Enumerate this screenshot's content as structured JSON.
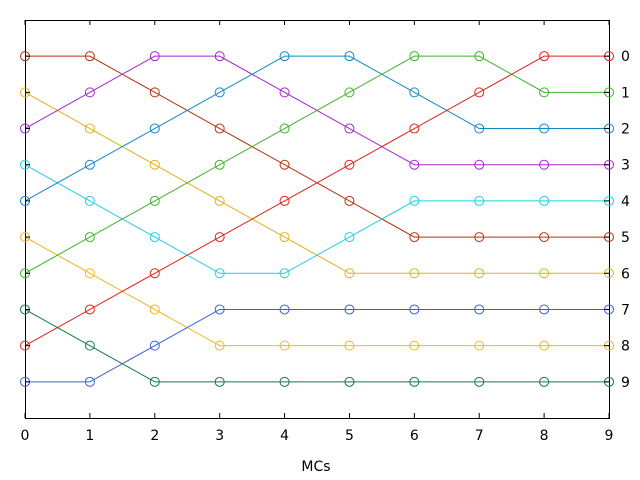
{
  "chart_data": {
    "type": "line",
    "title": "",
    "xlabel": "MCs",
    "ylabel": "",
    "x": [
      0,
      1,
      2,
      3,
      4,
      5,
      6,
      7,
      8,
      9
    ],
    "xticks": [
      "0",
      "1",
      "2",
      "3",
      "4",
      "5",
      "6",
      "7",
      "8",
      "9"
    ],
    "right_yticks": [
      "0",
      "1",
      "2",
      "3",
      "4",
      "5",
      "6",
      "7",
      "8",
      "9"
    ],
    "xlim": [
      0,
      9
    ],
    "ylim": [
      -1,
      10
    ],
    "y_inverted": true,
    "y_axis_side": "right",
    "grid": false,
    "marker": "open-circle",
    "series": [
      {
        "color": "#b5330f",
        "values": [
          0,
          0,
          1,
          2,
          3,
          4,
          5,
          5,
          5,
          5
        ]
      },
      {
        "color": "#e0b21a",
        "values": [
          1,
          2,
          3,
          4,
          5,
          6,
          6,
          6,
          6,
          6
        ]
      },
      {
        "color": "#a526d4",
        "values": [
          2,
          1,
          0,
          0,
          1,
          2,
          3,
          3,
          3,
          3
        ]
      },
      {
        "color": "#22d0e0",
        "values": [
          3,
          4,
          5,
          6,
          6,
          5,
          4,
          4,
          4,
          4
        ]
      },
      {
        "color": "#1386c9",
        "values": [
          4,
          3,
          2,
          1,
          0,
          0,
          1,
          2,
          2,
          2
        ]
      },
      {
        "color": "#f5b420",
        "values": [
          5,
          6,
          7,
          8,
          8,
          8,
          8,
          8,
          8,
          8
        ]
      },
      {
        "color": "#3cb42a",
        "values": [
          6,
          5,
          4,
          3,
          2,
          1,
          0,
          0,
          1,
          1
        ]
      },
      {
        "color": "#137a4a",
        "values": [
          7,
          8,
          9,
          9,
          9,
          9,
          9,
          9,
          9,
          9
        ]
      },
      {
        "color": "#e0231a",
        "values": [
          8,
          7,
          6,
          5,
          4,
          3,
          2,
          1,
          0,
          0
        ]
      },
      {
        "color": "#3a60d4",
        "values": [
          9,
          9,
          8,
          7,
          7,
          7,
          7,
          7,
          7,
          7
        ]
      }
    ]
  }
}
